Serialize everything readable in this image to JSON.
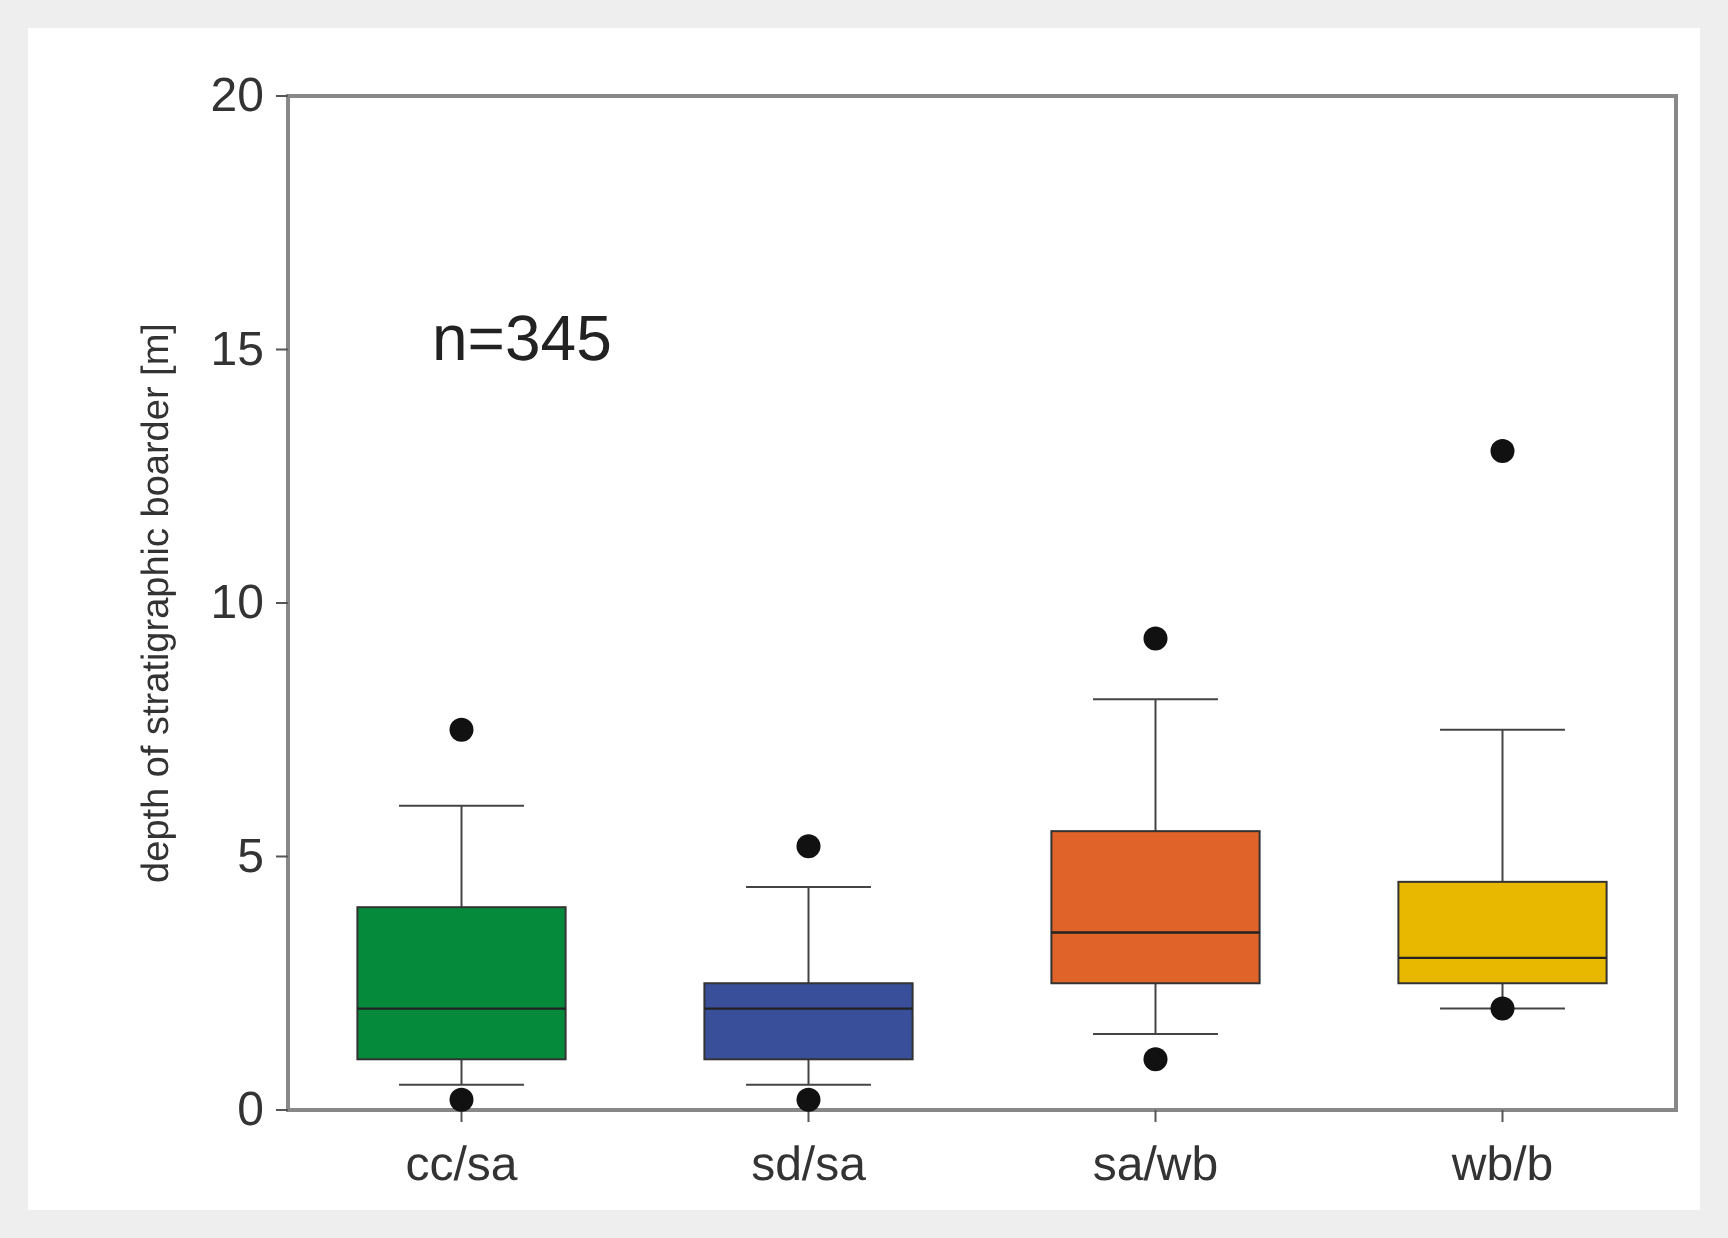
{
  "chart_data": {
    "type": "box",
    "ylabel": "depth of stratigraphic boarder [m]",
    "categories": [
      "cc/sa",
      "sd/sa",
      "sa/wb",
      "wb/b"
    ],
    "colors": [
      "#058a3c",
      "#3a4f9a",
      "#e0632a",
      "#e8b800"
    ],
    "boxes": [
      {
        "low": 0.5,
        "q1": 1,
        "median": 2,
        "q3": 4,
        "high": 6,
        "outliers": [
          7.5,
          0.2
        ]
      },
      {
        "low": 0.5,
        "q1": 1,
        "median": 2,
        "q3": 2.5,
        "high": 4.4,
        "outliers": [
          5.2,
          0.2
        ]
      },
      {
        "low": 1.5,
        "q1": 2.5,
        "median": 3.5,
        "q3": 5.5,
        "high": 8.1,
        "outliers": [
          9.3,
          1
        ]
      },
      {
        "low": 2,
        "q1": 2.5,
        "median": 3,
        "q3": 4.5,
        "high": 7.5,
        "outliers": [
          13,
          2
        ]
      }
    ],
    "ylim": [
      0,
      20
    ],
    "yticks": [
      0,
      5,
      10,
      15,
      20
    ],
    "annotations": [
      "n=345"
    ]
  }
}
